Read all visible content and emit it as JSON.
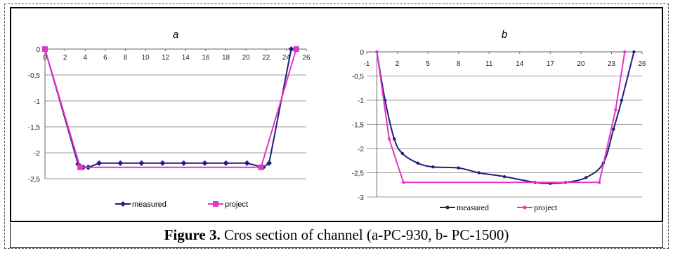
{
  "caption": {
    "label": "Figure 3.",
    "text": " Cros section of channel (a-PC-930, b- PC-1500)"
  },
  "chart_data": [
    {
      "type": "line",
      "title": "a",
      "xlabel": "",
      "ylabel": "",
      "xlim": [
        0,
        26
      ],
      "ylim": [
        -2.5,
        0
      ],
      "x_ticks": [
        "0",
        "2",
        "4",
        "6",
        "8",
        "10",
        "12",
        "14",
        "16",
        "18",
        "20",
        "22",
        "24",
        "26"
      ],
      "y_ticks": [
        "0",
        "-0,5",
        "-1",
        "-1,5",
        "-2",
        "-2,5"
      ],
      "grid": true,
      "legend": "bottom",
      "series": [
        {
          "name": "measured",
          "color": "#1f1f7a",
          "marker": "diamond",
          "points": [
            [
              0,
              0
            ],
            [
              3.3,
              -2.22
            ],
            [
              3.8,
              -2.28
            ],
            [
              4.3,
              -2.28
            ],
            [
              5.4,
              -2.2
            ],
            [
              7.5,
              -2.2
            ],
            [
              9.6,
              -2.2
            ],
            [
              11.7,
              -2.2
            ],
            [
              13.8,
              -2.2
            ],
            [
              15.9,
              -2.2
            ],
            [
              18.0,
              -2.2
            ],
            [
              20.1,
              -2.2
            ],
            [
              21.7,
              -2.28
            ],
            [
              22.3,
              -2.2
            ],
            [
              24.5,
              0
            ]
          ]
        },
        {
          "name": "project",
          "color": "#e633c8",
          "marker": "square",
          "points": [
            [
              0,
              0
            ],
            [
              3.5,
              -2.28
            ],
            [
              21.5,
              -2.28
            ],
            [
              25.0,
              0
            ]
          ]
        }
      ]
    },
    {
      "type": "line",
      "title": "b",
      "xlabel": "",
      "ylabel": "",
      "xlim": [
        -1,
        26
      ],
      "ylim": [
        -3,
        0
      ],
      "x_ticks": [
        "-1",
        "2",
        "5",
        "8",
        "11",
        "14",
        "17",
        "20",
        "23",
        "26"
      ],
      "x_tick_values": [
        -1,
        2,
        5,
        8,
        11,
        14,
        17,
        20,
        23,
        26
      ],
      "y_ticks": [
        "0",
        "-0,5",
        "-1",
        "-1,5",
        "-2",
        "-2,5",
        "-3"
      ],
      "grid": true,
      "legend": "bottom",
      "series": [
        {
          "name": "measured",
          "color": "#1f1f7a",
          "marker": "dot",
          "points": [
            [
              0,
              0
            ],
            [
              0.8,
              -1.0
            ],
            [
              1.7,
              -1.8
            ],
            [
              2.5,
              -2.1
            ],
            [
              4.0,
              -2.3
            ],
            [
              5.5,
              -2.38
            ],
            [
              8.0,
              -2.4
            ],
            [
              10.0,
              -2.5
            ],
            [
              12.5,
              -2.58
            ],
            [
              15.5,
              -2.7
            ],
            [
              17.0,
              -2.72
            ],
            [
              18.5,
              -2.7
            ],
            [
              20.5,
              -2.6
            ],
            [
              22.2,
              -2.3
            ],
            [
              23.2,
              -1.6
            ],
            [
              24.0,
              -1.0
            ],
            [
              25.2,
              0
            ]
          ]
        },
        {
          "name": "project",
          "color": "#e633c8",
          "marker": "dot",
          "points": [
            [
              0,
              0
            ],
            [
              1.2,
              -1.8
            ],
            [
              2.6,
              -2.7
            ],
            [
              21.8,
              -2.7
            ],
            [
              23.4,
              -1.2
            ],
            [
              24.3,
              0
            ]
          ]
        }
      ]
    }
  ]
}
